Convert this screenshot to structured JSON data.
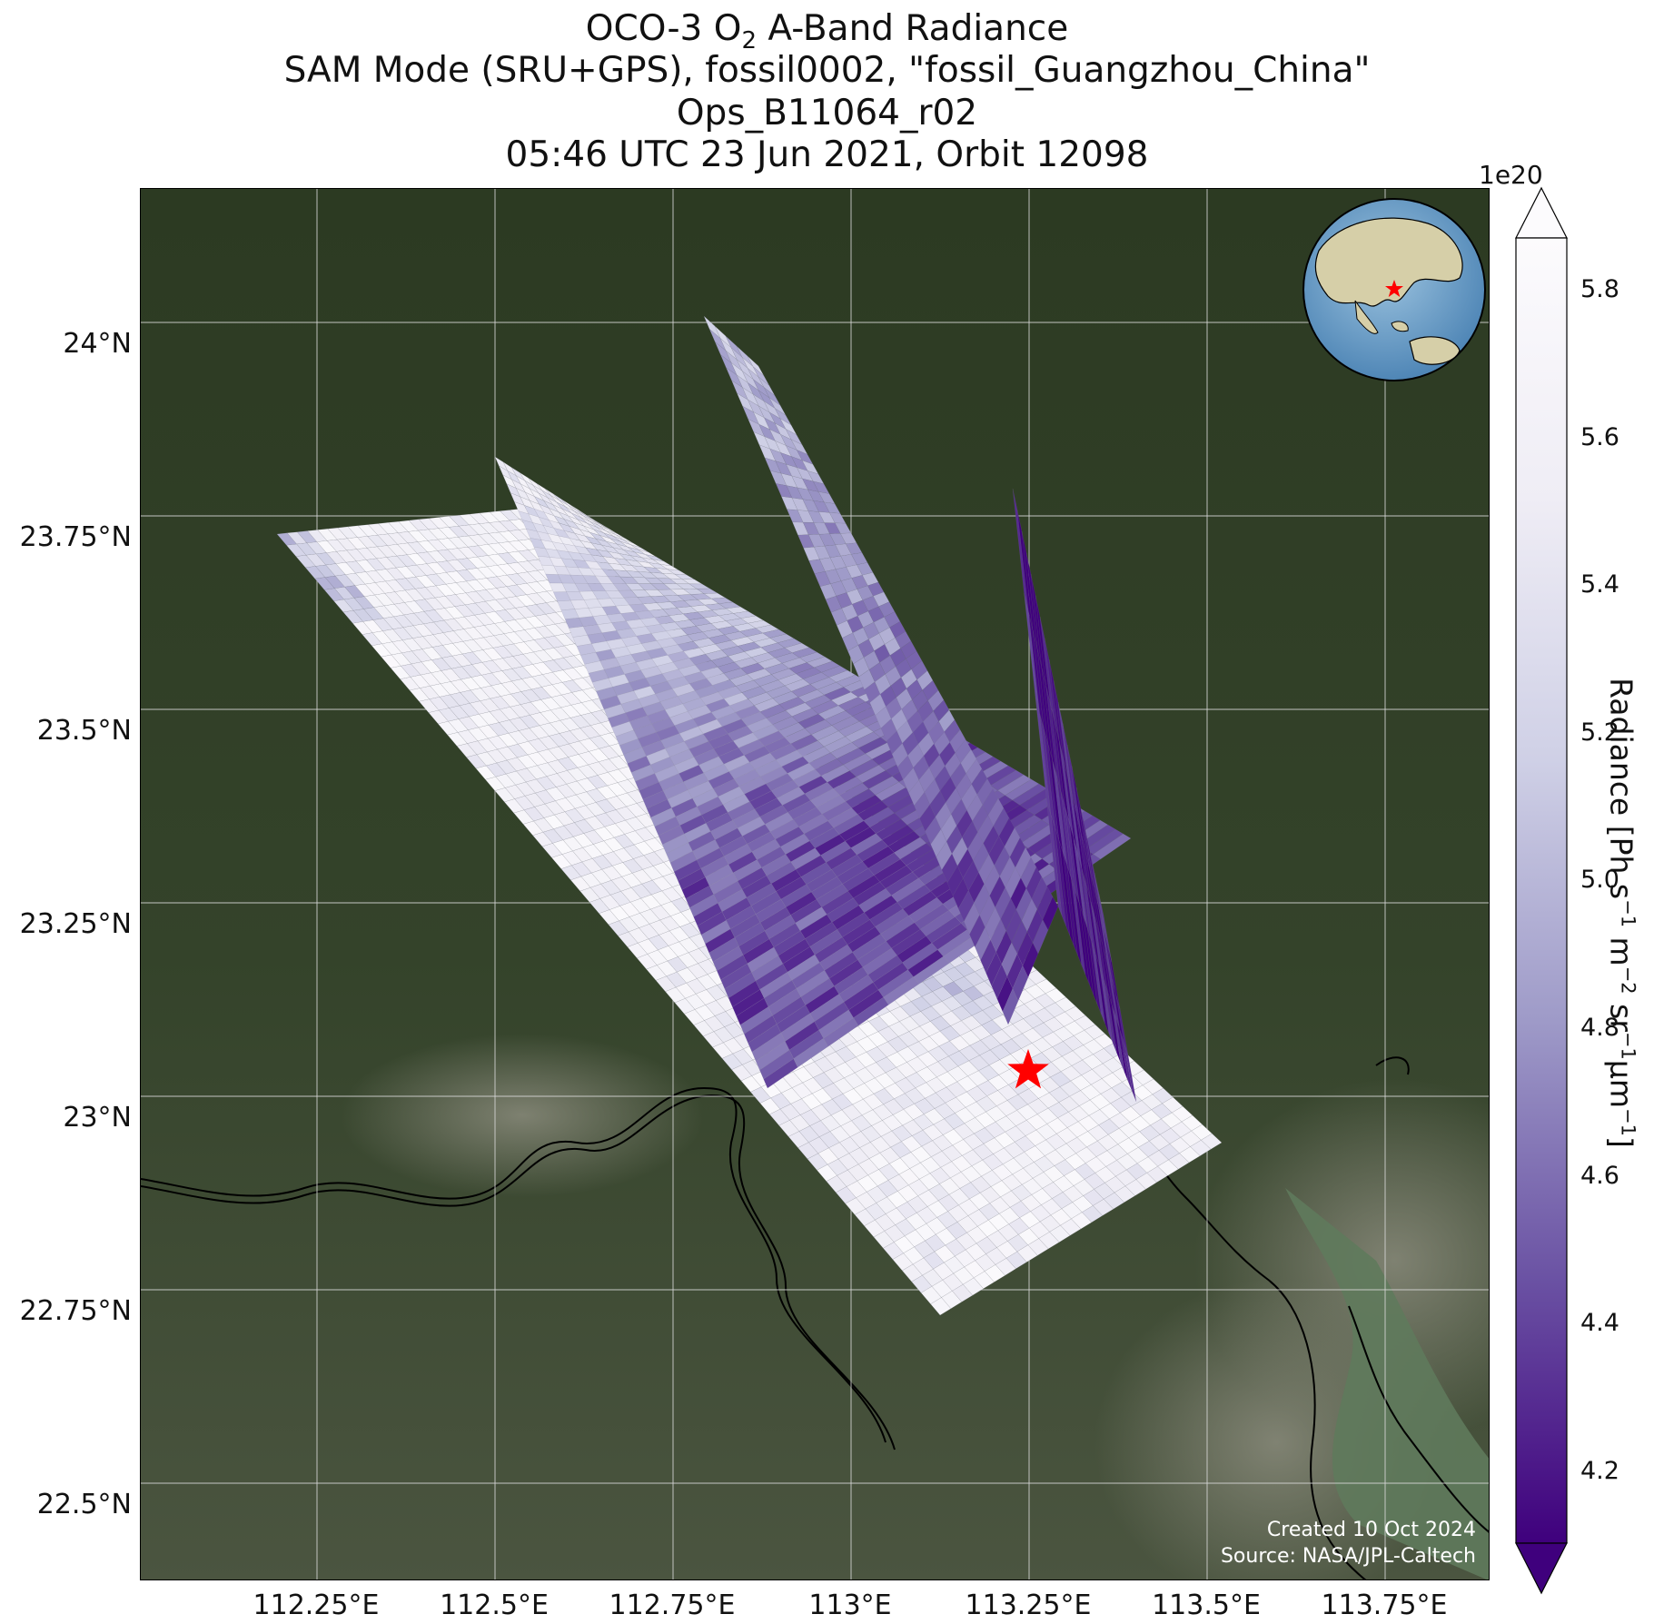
{
  "title": {
    "line1_prefix": "OCO-3 O",
    "line1_sub": "2",
    "line1_suffix": " A-Band Radiance",
    "line2": "SAM Mode (SRU+GPS), fossil0002, \"fossil_Guangzhou_China\"",
    "line3": "Ops_B11064_r02",
    "line4": "05:46 UTC 23 Jun 2021, Orbit 12098"
  },
  "map": {
    "lat_ticks": [
      "24°N",
      "23.75°N",
      "23.5°N",
      "23.25°N",
      "23°N",
      "22.75°N",
      "22.5°N"
    ],
    "lon_ticks": [
      "112.25°E",
      "112.5°E",
      "112.75°E",
      "113°E",
      "113.25°E",
      "113.5°E",
      "113.75°E"
    ],
    "target_marker": "red-star",
    "inset": "globe-with-target-star"
  },
  "credits": {
    "created": "Created 10 Oct 2024",
    "source": "Source: NASA/JPL-Caltech"
  },
  "colorbar": {
    "exponent": "1e20",
    "ticks": [
      "5.8",
      "5.6",
      "5.4",
      "5.2",
      "5.0",
      "4.8",
      "4.6",
      "4.4",
      "4.2"
    ],
    "label_main": "Radiance [Ph s",
    "label_parts": [
      "−1",
      " m",
      "−2",
      " sr",
      "−1",
      "μm",
      "−1",
      "]"
    ],
    "colormap": "Purples_r",
    "color_low": "#3f007d",
    "color_high": "#fcfbfd",
    "extend": "both"
  },
  "colors": {
    "star": "#ff0000",
    "coastline": "#000000"
  }
}
